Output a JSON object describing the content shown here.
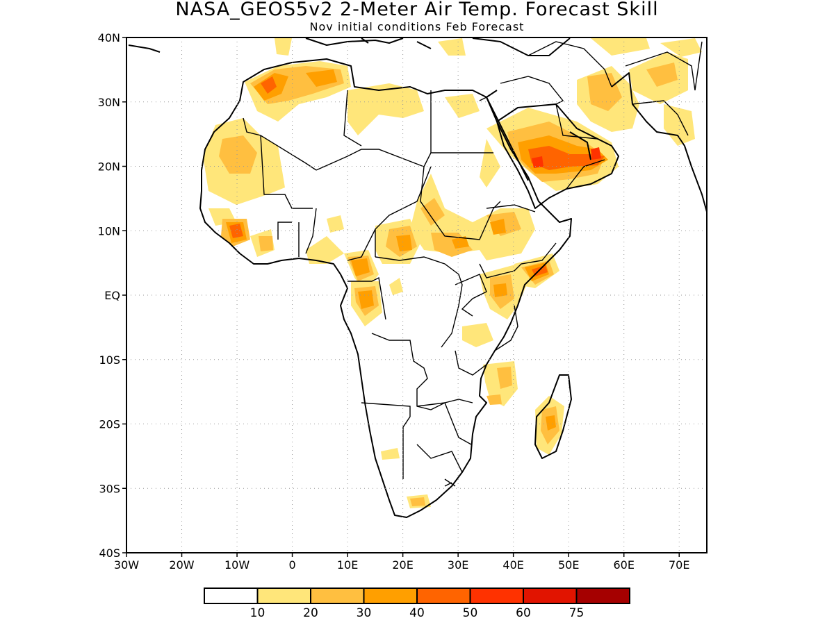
{
  "title": "NASA_GEOS5v2 2-Meter Air Temp. Forecast Skill",
  "subtitle": "Nov initial conditions  Feb Forecast",
  "map": {
    "lon_range": [
      -30,
      75
    ],
    "lat_range": [
      -40,
      40
    ],
    "lat_labels": [
      {
        "lat": 40,
        "text": "40N"
      },
      {
        "lat": 30,
        "text": "30N"
      },
      {
        "lat": 20,
        "text": "20N"
      },
      {
        "lat": 10,
        "text": "10N"
      },
      {
        "lat": 0,
        "text": "EQ"
      },
      {
        "lat": -10,
        "text": "10S"
      },
      {
        "lat": -20,
        "text": "20S"
      },
      {
        "lat": -30,
        "text": "30S"
      },
      {
        "lat": -40,
        "text": "40S"
      }
    ],
    "lon_labels": [
      {
        "lon": -30,
        "text": "30W"
      },
      {
        "lon": -20,
        "text": "20W"
      },
      {
        "lon": -10,
        "text": "10W"
      },
      {
        "lon": 0,
        "text": "0"
      },
      {
        "lon": 10,
        "text": "10E"
      },
      {
        "lon": 20,
        "text": "20E"
      },
      {
        "lon": 30,
        "text": "30E"
      },
      {
        "lon": 40,
        "text": "40E"
      },
      {
        "lon": 50,
        "text": "50E"
      },
      {
        "lon": 60,
        "text": "60E"
      },
      {
        "lon": 70,
        "text": "70E"
      }
    ],
    "gridlines": true
  },
  "colorbar": {
    "colors": [
      "#ffffff",
      "#ffe67a",
      "#ffbf40",
      "#ff9f00",
      "#ff6400",
      "#ff3200",
      "#e11400",
      "#a50000"
    ],
    "labels": [
      "10",
      "20",
      "30",
      "40",
      "50",
      "60",
      "75"
    ]
  }
}
